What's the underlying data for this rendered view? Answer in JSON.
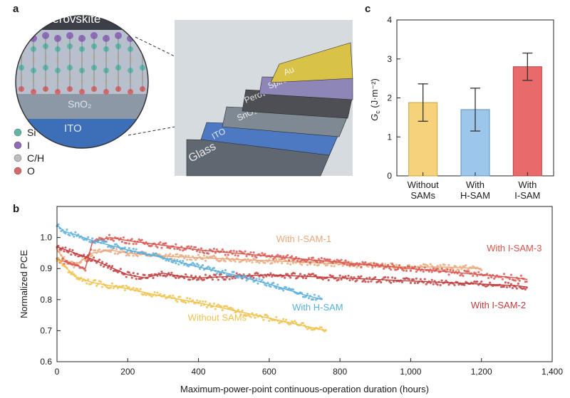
{
  "panels": {
    "a": "a",
    "b": "b",
    "c": "c"
  },
  "illustration": {
    "zoom_labels": {
      "perovskite": "Perovskite",
      "sno2": "SnO₂",
      "ito": "ITO"
    },
    "stack_labels": [
      "Au",
      "Spiro",
      "Perovskite",
      "SnO₂",
      "ITO",
      "Glass"
    ],
    "stack_colors": [
      "#d8c248",
      "#8f86b8",
      "#4e4e55",
      "#7f8993",
      "#4d78c2",
      "#5f6770"
    ],
    "legend": [
      {
        "label": "Si",
        "color": "#5fb7a8"
      },
      {
        "label": "I",
        "color": "#8e6ab8"
      },
      {
        "label": "C/H",
        "color": "#bdbdbd"
      },
      {
        "label": "O",
        "color": "#d36a6a"
      }
    ]
  },
  "chart_data": [
    {
      "panel": "c",
      "type": "bar",
      "categories": [
        "Without\nSAMs",
        "With\nH-SAM",
        "With\nI-SAM"
      ],
      "values": [
        1.88,
        1.7,
        2.8
      ],
      "errors": [
        0.48,
        0.55,
        0.35
      ],
      "colors": [
        "#f6d27a",
        "#9cc6ea",
        "#e96a6a"
      ],
      "edge_colors": [
        "#c9a443",
        "#5b90bf",
        "#b84343"
      ],
      "ylabel": "G_c (J·m⁻²)",
      "ylim": [
        0,
        4
      ],
      "yticks": [
        0,
        1,
        2,
        3,
        4
      ],
      "grid": false
    },
    {
      "panel": "b",
      "type": "line",
      "xlabel": "Maximum-power-point continuous-operation duration (hours)",
      "ylabel": "Normalized PCE",
      "xlim": [
        0,
        1400
      ],
      "ylim": [
        0.6,
        1.1
      ],
      "xticks": [
        0,
        200,
        400,
        600,
        800,
        1000,
        1200,
        1400
      ],
      "xtick_labels": [
        "0",
        "200",
        "400",
        "600",
        "800",
        "1,000",
        "1,200",
        "1,400"
      ],
      "yticks": [
        0.6,
        0.7,
        0.8,
        0.9,
        1.0
      ],
      "ytick_labels": [
        "0.6",
        "0.7",
        "0.8",
        "0.9",
        "1.0"
      ],
      "grid": false,
      "series": [
        {
          "name": "With I-SAM-1",
          "color": "#e9a77a",
          "x": [
            0,
            20,
            50,
            100,
            150,
            200,
            300,
            400,
            500,
            600,
            700,
            800,
            900,
            1000,
            1100,
            1200
          ],
          "y": [
            0.96,
            0.93,
            0.91,
            0.95,
            0.96,
            0.95,
            0.94,
            0.935,
            0.93,
            0.925,
            0.92,
            0.915,
            0.91,
            0.905,
            0.905,
            0.9
          ],
          "label_text": "With I-SAM-1",
          "label_at": [
            620,
            0.985
          ]
        },
        {
          "name": "With I-SAM-3",
          "color": "#d9554f",
          "x": [
            0,
            30,
            80,
            100,
            150,
            200,
            300,
            400,
            500,
            600,
            700,
            800,
            900,
            1000,
            1100,
            1200,
            1300,
            1330
          ],
          "y": [
            0.93,
            0.92,
            0.9,
            0.985,
            1.0,
            0.99,
            0.975,
            0.96,
            0.95,
            0.94,
            0.93,
            0.92,
            0.91,
            0.9,
            0.89,
            0.88,
            0.87,
            0.865
          ],
          "label_text": "With I-SAM-3",
          "label_at": [
            1215,
            0.955
          ]
        },
        {
          "name": "With I-SAM-2",
          "color": "#c23b3b",
          "x": [
            0,
            50,
            100,
            150,
            200,
            250,
            300,
            350,
            400,
            500,
            600,
            700,
            800,
            900,
            1000,
            1100,
            1200,
            1300,
            1330
          ],
          "y": [
            0.97,
            0.95,
            0.93,
            0.905,
            0.88,
            0.87,
            0.885,
            0.875,
            0.87,
            0.875,
            0.88,
            0.875,
            0.87,
            0.865,
            0.86,
            0.855,
            0.85,
            0.845,
            0.84
          ],
          "label_text": "With I-SAM-2",
          "label_at": [
            1170,
            0.772
          ]
        },
        {
          "name": "With H-SAM",
          "color": "#5aaedc",
          "x": [
            0,
            20,
            50,
            100,
            200,
            300,
            400,
            500,
            600,
            700,
            750
          ],
          "y": [
            1.04,
            1.02,
            1.01,
            0.99,
            0.96,
            0.935,
            0.905,
            0.88,
            0.85,
            0.815,
            0.8
          ],
          "label_text": "With H-SAM",
          "label_at": [
            665,
            0.765
          ]
        },
        {
          "name": "Without SAMs",
          "color": "#f0c24b",
          "x": [
            0,
            20,
            50,
            100,
            200,
            300,
            400,
            500,
            600,
            700,
            760
          ],
          "y": [
            0.93,
            0.91,
            0.875,
            0.855,
            0.835,
            0.81,
            0.79,
            0.765,
            0.74,
            0.715,
            0.7
          ],
          "label_text": "Without SAMs",
          "label_at": [
            370,
            0.732
          ]
        }
      ]
    }
  ]
}
